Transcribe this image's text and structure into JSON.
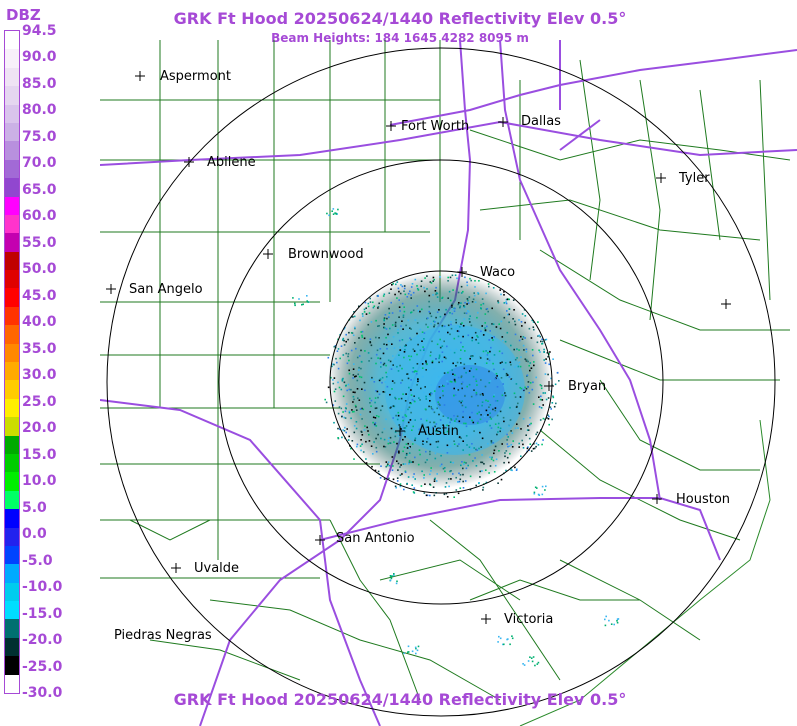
{
  "header": {
    "title": "GRK Ft Hood 20250624/1440 Reflectivity Elev 0.5°",
    "subtitle": "Beam Heights: 184 1645 4282 8095 m",
    "footer": "GRK Ft Hood 20250624/1440 Reflectivity Elev 0.5°"
  },
  "legend": {
    "unit": "DBZ",
    "labels": [
      "94.5",
      "90.0",
      "85.0",
      "80.0",
      "75.0",
      "70.0",
      "65.0",
      "60.0",
      "55.0",
      "50.0",
      "45.0",
      "40.0",
      "35.0",
      "30.0",
      "25.0",
      "20.0",
      "15.0",
      "10.0",
      "5.0",
      "0.0",
      "-5.0",
      "-10.0",
      "-15.0",
      "-20.0",
      "-25.0",
      "-30.0"
    ],
    "colors": [
      "#ffffff",
      "#f8f0fa",
      "#efe3f4",
      "#e5d6f0",
      "#d9c4ec",
      "#cbb1e6",
      "#b890de",
      "#a26ad6",
      "#9147cf",
      "#ff00ff",
      "#ff33cc",
      "#c400b0",
      "#c00000",
      "#e00000",
      "#ff0000",
      "#ff3300",
      "#ff6600",
      "#ff8800",
      "#ffaa00",
      "#ffcc00",
      "#ffee00",
      "#ccdd00",
      "#00aa00",
      "#00cc00",
      "#00ee00",
      "#00ff66",
      "#0000ff",
      "#2222ee",
      "#0044ff",
      "#00aaff",
      "#00ccee",
      "#00ddff",
      "#007070",
      "#003030",
      "#000000",
      "#ffffff"
    ]
  },
  "map": {
    "rings_label": "range rings",
    "cities": [
      {
        "name": "Aspermont"
      },
      {
        "name": "Fort Worth"
      },
      {
        "name": "Dallas"
      },
      {
        "name": "Abilene"
      },
      {
        "name": "Tyler"
      },
      {
        "name": "Brownwood"
      },
      {
        "name": "Waco"
      },
      {
        "name": "San Angelo"
      },
      {
        "name": "Bryan"
      },
      {
        "name": "Austin"
      },
      {
        "name": "Houston"
      },
      {
        "name": "San Antonio"
      },
      {
        "name": "Uvalde"
      },
      {
        "name": "Victoria"
      },
      {
        "name": "Piedras Negras"
      }
    ],
    "colors": {
      "county_lines": "#1f7a1f",
      "highways": "#9a4ee0",
      "rings": "#000000",
      "title": "#a64ad6"
    }
  }
}
